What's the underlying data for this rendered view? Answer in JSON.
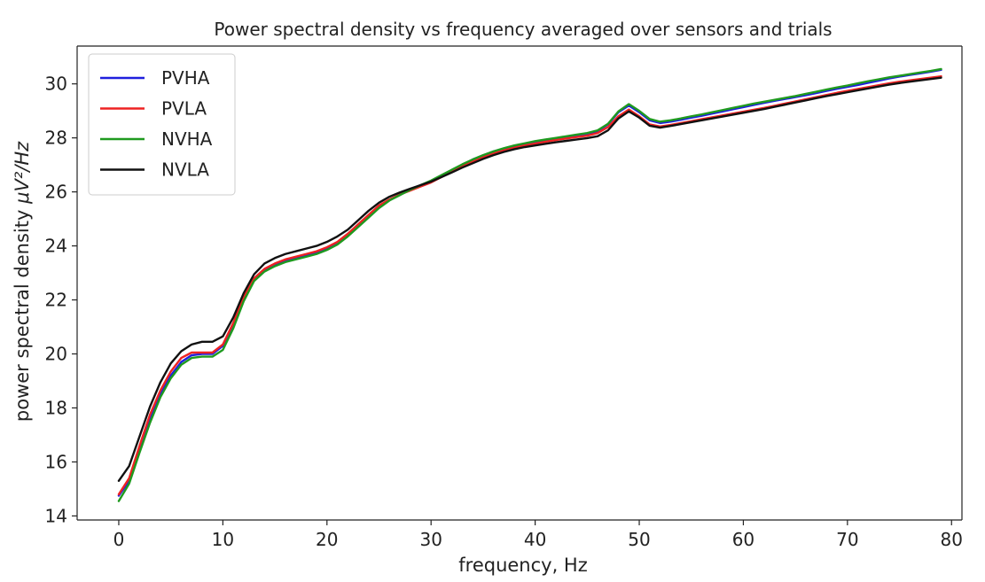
{
  "chart_data": {
    "type": "line",
    "title": "Power spectral density vs frequency averaged over sensors and trials",
    "xlabel": "frequency, Hz",
    "ylabel_prefix": "power spectral density ",
    "ylabel_unit": "μV²/Hz",
    "xlim": [
      -4,
      81
    ],
    "ylim": [
      13.85,
      31.4
    ],
    "xticks": [
      0,
      10,
      20,
      30,
      40,
      50,
      60,
      70,
      80
    ],
    "yticks": [
      14,
      16,
      18,
      20,
      22,
      24,
      26,
      28,
      30
    ],
    "grid": false,
    "legend_position": "top-left",
    "x": [
      0,
      1,
      2,
      3,
      4,
      5,
      6,
      7,
      8,
      9,
      10,
      11,
      12,
      13,
      14,
      15,
      16,
      17,
      18,
      19,
      20,
      21,
      22,
      23,
      24,
      25,
      26,
      27,
      28,
      29,
      30,
      31,
      32,
      33,
      34,
      35,
      36,
      37,
      38,
      39,
      40,
      41,
      42,
      43,
      44,
      45,
      46,
      47,
      48,
      49,
      50,
      51,
      52,
      53,
      54,
      55,
      56,
      57,
      58,
      59,
      60,
      61,
      62,
      63,
      64,
      65,
      66,
      67,
      68,
      69,
      70,
      71,
      72,
      73,
      74,
      75,
      76,
      77,
      78,
      79
    ],
    "series": [
      {
        "name": "PVHA",
        "color": "#1f1fdd",
        "values": [
          14.75,
          15.3,
          16.5,
          17.6,
          18.5,
          19.2,
          19.7,
          19.95,
          20.0,
          20.0,
          20.3,
          21.1,
          22.05,
          22.75,
          23.1,
          23.3,
          23.45,
          23.55,
          23.65,
          23.75,
          23.9,
          24.1,
          24.4,
          24.75,
          25.1,
          25.45,
          25.7,
          25.9,
          26.1,
          26.25,
          26.4,
          26.6,
          26.8,
          27.0,
          27.2,
          27.35,
          27.5,
          27.6,
          27.7,
          27.78,
          27.85,
          27.92,
          27.98,
          28.04,
          28.1,
          28.15,
          28.25,
          28.5,
          28.95,
          29.2,
          28.95,
          28.65,
          28.55,
          28.6,
          28.67,
          28.75,
          28.82,
          28.9,
          28.98,
          29.06,
          29.14,
          29.22,
          29.3,
          29.37,
          29.44,
          29.51,
          29.58,
          29.66,
          29.74,
          29.82,
          29.89,
          29.96,
          30.04,
          30.12,
          30.2,
          30.27,
          30.33,
          30.39,
          30.45,
          30.52
        ]
      },
      {
        "name": "PVLA",
        "color": "#ee2222",
        "values": [
          14.8,
          15.4,
          16.6,
          17.75,
          18.65,
          19.35,
          19.85,
          20.05,
          20.05,
          20.05,
          20.35,
          21.15,
          22.1,
          22.8,
          23.15,
          23.35,
          23.5,
          23.6,
          23.7,
          23.8,
          23.95,
          24.15,
          24.45,
          24.8,
          25.15,
          25.5,
          25.72,
          25.9,
          26.05,
          26.2,
          26.35,
          26.55,
          26.75,
          26.95,
          27.12,
          27.28,
          27.42,
          27.54,
          27.64,
          27.72,
          27.79,
          27.86,
          27.92,
          27.98,
          28.03,
          28.08,
          28.18,
          28.4,
          28.8,
          29.05,
          28.8,
          28.5,
          28.42,
          28.48,
          28.55,
          28.62,
          28.69,
          28.76,
          28.83,
          28.9,
          28.97,
          29.04,
          29.11,
          29.19,
          29.27,
          29.35,
          29.43,
          29.51,
          29.59,
          29.67,
          29.74,
          29.81,
          29.88,
          29.95,
          30.02,
          30.08,
          30.13,
          30.18,
          30.23,
          30.28
        ]
      },
      {
        "name": "NVHA",
        "color": "#1f9a1f",
        "values": [
          14.55,
          15.2,
          16.35,
          17.45,
          18.4,
          19.1,
          19.6,
          19.85,
          19.9,
          19.9,
          20.15,
          20.95,
          21.95,
          22.7,
          23.05,
          23.25,
          23.4,
          23.5,
          23.6,
          23.7,
          23.85,
          24.05,
          24.35,
          24.7,
          25.05,
          25.4,
          25.68,
          25.88,
          26.08,
          26.25,
          26.42,
          26.62,
          26.82,
          27.02,
          27.2,
          27.36,
          27.5,
          27.62,
          27.72,
          27.8,
          27.88,
          27.94,
          28.0,
          28.06,
          28.12,
          28.18,
          28.28,
          28.52,
          28.98,
          29.25,
          29.0,
          28.7,
          28.6,
          28.65,
          28.72,
          28.8,
          28.87,
          28.95,
          29.03,
          29.11,
          29.19,
          29.27,
          29.34,
          29.41,
          29.48,
          29.55,
          29.63,
          29.71,
          29.79,
          29.87,
          29.94,
          30.02,
          30.1,
          30.17,
          30.24,
          30.3,
          30.36,
          30.42,
          30.48,
          30.55
        ]
      },
      {
        "name": "NVLA",
        "color": "#111111",
        "values": [
          15.3,
          15.85,
          16.95,
          18.05,
          18.95,
          19.65,
          20.1,
          20.35,
          20.45,
          20.45,
          20.65,
          21.35,
          22.25,
          22.95,
          23.35,
          23.55,
          23.7,
          23.8,
          23.9,
          24.0,
          24.15,
          24.35,
          24.6,
          24.95,
          25.3,
          25.6,
          25.82,
          25.98,
          26.12,
          26.25,
          26.38,
          26.55,
          26.72,
          26.9,
          27.06,
          27.22,
          27.36,
          27.48,
          27.58,
          27.66,
          27.72,
          27.78,
          27.84,
          27.89,
          27.94,
          27.99,
          28.06,
          28.28,
          28.72,
          28.98,
          28.75,
          28.45,
          28.38,
          28.44,
          28.51,
          28.58,
          28.65,
          28.72,
          28.79,
          28.86,
          28.93,
          29.0,
          29.07,
          29.15,
          29.23,
          29.31,
          29.39,
          29.47,
          29.55,
          29.62,
          29.69,
          29.76,
          29.83,
          29.9,
          29.97,
          30.03,
          30.08,
          30.13,
          30.18,
          30.23
        ]
      }
    ]
  }
}
